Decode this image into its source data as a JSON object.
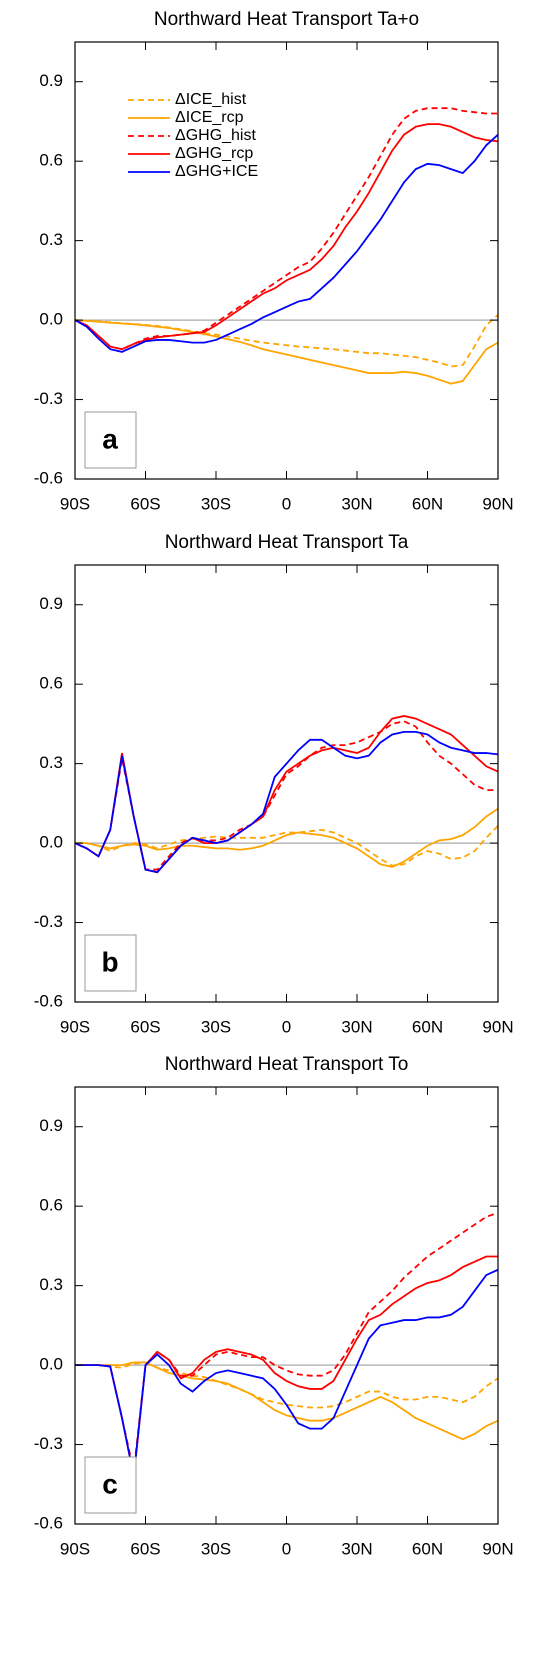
{
  "chart_data": [
    {
      "type": "line",
      "title": "Northward Heat Transport Ta+o",
      "panel_label": "a",
      "legend": "upper left",
      "x": [
        -90,
        -85,
        -80,
        -75,
        -70,
        -65,
        -60,
        -55,
        -50,
        -45,
        -40,
        -35,
        -30,
        -25,
        -20,
        -15,
        -10,
        -5,
        0,
        5,
        10,
        15,
        20,
        25,
        30,
        35,
        40,
        45,
        50,
        55,
        60,
        65,
        70,
        75,
        80,
        85,
        90
      ],
      "xlim": [
        -90,
        90
      ],
      "xticks": [
        {
          "value": -90,
          "label": "90S"
        },
        {
          "value": -60,
          "label": "60S"
        },
        {
          "value": -30,
          "label": "30S"
        },
        0,
        {
          "value": 30,
          "label": "30N"
        },
        {
          "value": 60,
          "label": "60N"
        },
        {
          "value": 90,
          "label": "90N"
        }
      ],
      "ylim": [
        -0.6,
        1.05
      ],
      "yticks": [
        -0.6,
        -0.3,
        {
          "value": 0,
          "label": "0.0"
        },
        0.3,
        0.6,
        0.9
      ],
      "series": [
        {
          "name": "ΔICE_hist",
          "color": "#ffa500",
          "line_style": "dashed",
          "values": [
            0,
            -0.002,
            -0.005,
            -0.008,
            -0.012,
            -0.015,
            -0.018,
            -0.022,
            -0.028,
            -0.035,
            -0.042,
            -0.05,
            -0.055,
            -0.062,
            -0.07,
            -0.078,
            -0.085,
            -0.09,
            -0.095,
            -0.1,
            -0.103,
            -0.107,
            -0.11,
            -0.115,
            -0.12,
            -0.125,
            -0.125,
            -0.13,
            -0.135,
            -0.14,
            -0.15,
            -0.16,
            -0.175,
            -0.17,
            -0.1,
            -0.02,
            0.02
          ]
        },
        {
          "name": "ΔICE_rcp",
          "color": "#ffa500",
          "line_style": "solid",
          "values": [
            0,
            -0.003,
            -0.006,
            -0.01,
            -0.013,
            -0.016,
            -0.02,
            -0.025,
            -0.03,
            -0.038,
            -0.045,
            -0.053,
            -0.062,
            -0.072,
            -0.082,
            -0.095,
            -0.11,
            -0.12,
            -0.13,
            -0.14,
            -0.15,
            -0.16,
            -0.17,
            -0.18,
            -0.19,
            -0.2,
            -0.2,
            -0.2,
            -0.195,
            -0.2,
            -0.21,
            -0.225,
            -0.24,
            -0.23,
            -0.17,
            -0.11,
            -0.085
          ]
        },
        {
          "name": "ΔGHG_hist",
          "color": "#ff0000",
          "line_style": "dashed",
          "values": [
            0,
            -0.02,
            -0.06,
            -0.1,
            -0.11,
            -0.09,
            -0.07,
            -0.06,
            -0.06,
            -0.055,
            -0.05,
            -0.04,
            -0.01,
            0.02,
            0.05,
            0.08,
            0.11,
            0.14,
            0.17,
            0.2,
            0.22,
            0.27,
            0.33,
            0.4,
            0.47,
            0.54,
            0.62,
            0.7,
            0.76,
            0.79,
            0.8,
            0.8,
            0.8,
            0.79,
            0.785,
            0.78,
            0.78
          ]
        },
        {
          "name": "ΔGHG_rcp",
          "color": "#ff0000",
          "line_style": "solid",
          "values": [
            0,
            -0.02,
            -0.06,
            -0.1,
            -0.11,
            -0.09,
            -0.075,
            -0.065,
            -0.06,
            -0.055,
            -0.05,
            -0.045,
            -0.02,
            0.01,
            0.04,
            0.07,
            0.1,
            0.12,
            0.15,
            0.17,
            0.19,
            0.23,
            0.28,
            0.35,
            0.41,
            0.48,
            0.56,
            0.64,
            0.7,
            0.73,
            0.74,
            0.74,
            0.73,
            0.71,
            0.69,
            0.68,
            0.675
          ]
        },
        {
          "name": "ΔGHG+ICE",
          "color": "#0000ff",
          "line_style": "solid",
          "values": [
            0,
            -0.025,
            -0.07,
            -0.11,
            -0.12,
            -0.1,
            -0.08,
            -0.075,
            -0.075,
            -0.08,
            -0.085,
            -0.085,
            -0.075,
            -0.055,
            -0.035,
            -0.015,
            0.01,
            0.03,
            0.05,
            0.07,
            0.08,
            0.12,
            0.16,
            0.21,
            0.26,
            0.32,
            0.38,
            0.45,
            0.52,
            0.57,
            0.59,
            0.585,
            0.57,
            0.555,
            0.6,
            0.66,
            0.7
          ]
        }
      ]
    },
    {
      "type": "line",
      "title": "Northward Heat Transport Ta",
      "panel_label": "b",
      "x": [
        -90,
        -85,
        -80,
        -75,
        -70,
        -65,
        -60,
        -55,
        -50,
        -45,
        -40,
        -35,
        -30,
        -25,
        -20,
        -15,
        -10,
        -5,
        0,
        5,
        10,
        15,
        20,
        25,
        30,
        35,
        40,
        45,
        50,
        55,
        60,
        65,
        70,
        75,
        80,
        85,
        90
      ],
      "xlim": [
        -90,
        90
      ],
      "xticks": [
        {
          "value": -90,
          "label": "90S"
        },
        {
          "value": -60,
          "label": "60S"
        },
        {
          "value": -30,
          "label": "30S"
        },
        0,
        {
          "value": 30,
          "label": "30N"
        },
        {
          "value": 60,
          "label": "60N"
        },
        {
          "value": 90,
          "label": "90N"
        }
      ],
      "ylim": [
        -0.6,
        1.05
      ],
      "yticks": [
        -0.6,
        -0.3,
        {
          "value": 0,
          "label": "0.0"
        },
        0.3,
        0.6,
        0.9
      ],
      "series": [
        {
          "name": "ΔICE_hist",
          "color": "#ffa500",
          "line_style": "dashed",
          "values": [
            0,
            0,
            -0.01,
            -0.03,
            -0.01,
            0,
            -0.005,
            -0.02,
            -0.005,
            0.01,
            0.015,
            0.02,
            0.025,
            0.02,
            0.02,
            0.02,
            0.02,
            0.03,
            0.04,
            0.04,
            0.045,
            0.05,
            0.04,
            0.02,
            0,
            -0.03,
            -0.06,
            -0.085,
            -0.08,
            -0.05,
            -0.03,
            -0.04,
            -0.06,
            -0.055,
            -0.03,
            0.02,
            0.065
          ]
        },
        {
          "name": "ΔICE_rcp",
          "color": "#ffa500",
          "line_style": "solid",
          "values": [
            0,
            0,
            -0.01,
            -0.02,
            -0.01,
            -0.005,
            -0.01,
            -0.025,
            -0.02,
            -0.01,
            -0.01,
            -0.015,
            -0.02,
            -0.02,
            -0.025,
            -0.02,
            -0.01,
            0.01,
            0.03,
            0.04,
            0.035,
            0.03,
            0.02,
            0,
            -0.02,
            -0.05,
            -0.08,
            -0.09,
            -0.07,
            -0.04,
            -0.01,
            0.01,
            0.015,
            0.03,
            0.06,
            0.1,
            0.13
          ]
        },
        {
          "name": "ΔGHG_hist",
          "color": "#ff0000",
          "line_style": "dashed",
          "values": [
            0,
            -0.02,
            -0.05,
            0.05,
            0.32,
            0.1,
            -0.1,
            -0.1,
            -0.05,
            0,
            0.02,
            0.01,
            0.01,
            0.02,
            0.05,
            0.07,
            0.1,
            0.18,
            0.26,
            0.29,
            0.33,
            0.36,
            0.37,
            0.37,
            0.38,
            0.4,
            0.42,
            0.45,
            0.46,
            0.44,
            0.38,
            0.33,
            0.3,
            0.26,
            0.22,
            0.2,
            0.2
          ]
        },
        {
          "name": "ΔGHG_rcp",
          "color": "#ff0000",
          "line_style": "solid",
          "values": [
            0,
            -0.02,
            -0.05,
            0.05,
            0.34,
            0.1,
            -0.1,
            -0.11,
            -0.06,
            -0.01,
            0.02,
            0,
            0,
            0.01,
            0.04,
            0.07,
            0.1,
            0.2,
            0.27,
            0.3,
            0.33,
            0.35,
            0.36,
            0.35,
            0.34,
            0.36,
            0.42,
            0.47,
            0.48,
            0.47,
            0.45,
            0.43,
            0.41,
            0.37,
            0.33,
            0.29,
            0.27
          ]
        },
        {
          "name": "ΔGHG+ICE",
          "color": "#0000ff",
          "line_style": "solid",
          "values": [
            0,
            -0.02,
            -0.05,
            0.05,
            0.33,
            0.1,
            -0.1,
            -0.11,
            -0.06,
            -0.01,
            0.02,
            0.01,
            0,
            0.01,
            0.04,
            0.07,
            0.11,
            0.25,
            0.3,
            0.35,
            0.39,
            0.39,
            0.36,
            0.33,
            0.32,
            0.33,
            0.38,
            0.41,
            0.42,
            0.42,
            0.41,
            0.38,
            0.36,
            0.35,
            0.34,
            0.34,
            0.335
          ]
        }
      ]
    },
    {
      "type": "line",
      "title": "Northward Heat Transport To",
      "panel_label": "c",
      "x": [
        -90,
        -85,
        -80,
        -75,
        -70,
        -65,
        -60,
        -55,
        -50,
        -45,
        -40,
        -35,
        -30,
        -25,
        -20,
        -15,
        -10,
        -5,
        0,
        5,
        10,
        15,
        20,
        25,
        30,
        35,
        40,
        45,
        50,
        55,
        60,
        65,
        70,
        75,
        80,
        85,
        90
      ],
      "xlim": [
        -90,
        90
      ],
      "xticks": [
        {
          "value": -90,
          "label": "90S"
        },
        {
          "value": -60,
          "label": "60S"
        },
        {
          "value": -30,
          "label": "30S"
        },
        0,
        {
          "value": 30,
          "label": "30N"
        },
        {
          "value": 60,
          "label": "60N"
        },
        {
          "value": 90,
          "label": "90N"
        }
      ],
      "ylim": [
        -0.6,
        1.05
      ],
      "yticks": [
        -0.6,
        -0.3,
        {
          "value": 0,
          "label": "0.0"
        },
        0.3,
        0.6,
        0.9
      ],
      "series": [
        {
          "name": "ΔICE_hist",
          "color": "#ffa500",
          "line_style": "dashed",
          "values": [
            0,
            0,
            0,
            -0.005,
            -0.01,
            0.005,
            0.01,
            -0.01,
            -0.02,
            -0.03,
            -0.04,
            -0.045,
            -0.06,
            -0.075,
            -0.09,
            -0.11,
            -0.13,
            -0.14,
            -0.15,
            -0.155,
            -0.16,
            -0.16,
            -0.155,
            -0.14,
            -0.12,
            -0.1,
            -0.1,
            -0.12,
            -0.13,
            -0.13,
            -0.12,
            -0.12,
            -0.13,
            -0.14,
            -0.12,
            -0.08,
            -0.05
          ]
        },
        {
          "name": "ΔICE_rcp",
          "color": "#ffa500",
          "line_style": "solid",
          "values": [
            0,
            0,
            0,
            0,
            0,
            0.01,
            0.01,
            -0.01,
            -0.03,
            -0.04,
            -0.05,
            -0.055,
            -0.06,
            -0.07,
            -0.09,
            -0.11,
            -0.14,
            -0.17,
            -0.19,
            -0.2,
            -0.21,
            -0.21,
            -0.2,
            -0.18,
            -0.16,
            -0.14,
            -0.12,
            -0.14,
            -0.17,
            -0.2,
            -0.22,
            -0.24,
            -0.26,
            -0.28,
            -0.26,
            -0.23,
            -0.21
          ]
        },
        {
          "name": "ΔGHG_hist",
          "color": "#ff0000",
          "line_style": "dashed",
          "values": [
            0,
            0,
            0,
            -0.005,
            -0.2,
            -0.4,
            0,
            0.05,
            0.02,
            -0.04,
            -0.04,
            0,
            0.04,
            0.05,
            0.04,
            0.03,
            0.03,
            0,
            -0.02,
            -0.035,
            -0.04,
            -0.04,
            -0.02,
            0.04,
            0.12,
            0.2,
            0.24,
            0.28,
            0.33,
            0.37,
            0.41,
            0.44,
            0.47,
            0.5,
            0.53,
            0.56,
            0.575
          ]
        },
        {
          "name": "ΔGHG_rcp",
          "color": "#ff0000",
          "line_style": "solid",
          "values": [
            0,
            0,
            0,
            -0.005,
            -0.2,
            -0.42,
            0,
            0.05,
            0.02,
            -0.05,
            -0.03,
            0.02,
            0.05,
            0.06,
            0.05,
            0.04,
            0.02,
            -0.03,
            -0.06,
            -0.08,
            -0.09,
            -0.09,
            -0.06,
            0.02,
            0.1,
            0.17,
            0.19,
            0.23,
            0.26,
            0.29,
            0.31,
            0.32,
            0.34,
            0.37,
            0.39,
            0.41,
            0.41
          ]
        },
        {
          "name": "ΔGHG+ICE",
          "color": "#0000ff",
          "line_style": "solid",
          "values": [
            0,
            0,
            0,
            -0.005,
            -0.2,
            -0.42,
            0,
            0.04,
            0,
            -0.07,
            -0.1,
            -0.06,
            -0.03,
            -0.02,
            -0.03,
            -0.04,
            -0.05,
            -0.09,
            -0.15,
            -0.22,
            -0.24,
            -0.24,
            -0.2,
            -0.1,
            0,
            0.1,
            0.15,
            0.16,
            0.17,
            0.17,
            0.18,
            0.18,
            0.19,
            0.22,
            0.28,
            0.34,
            0.36
          ]
        }
      ]
    }
  ]
}
